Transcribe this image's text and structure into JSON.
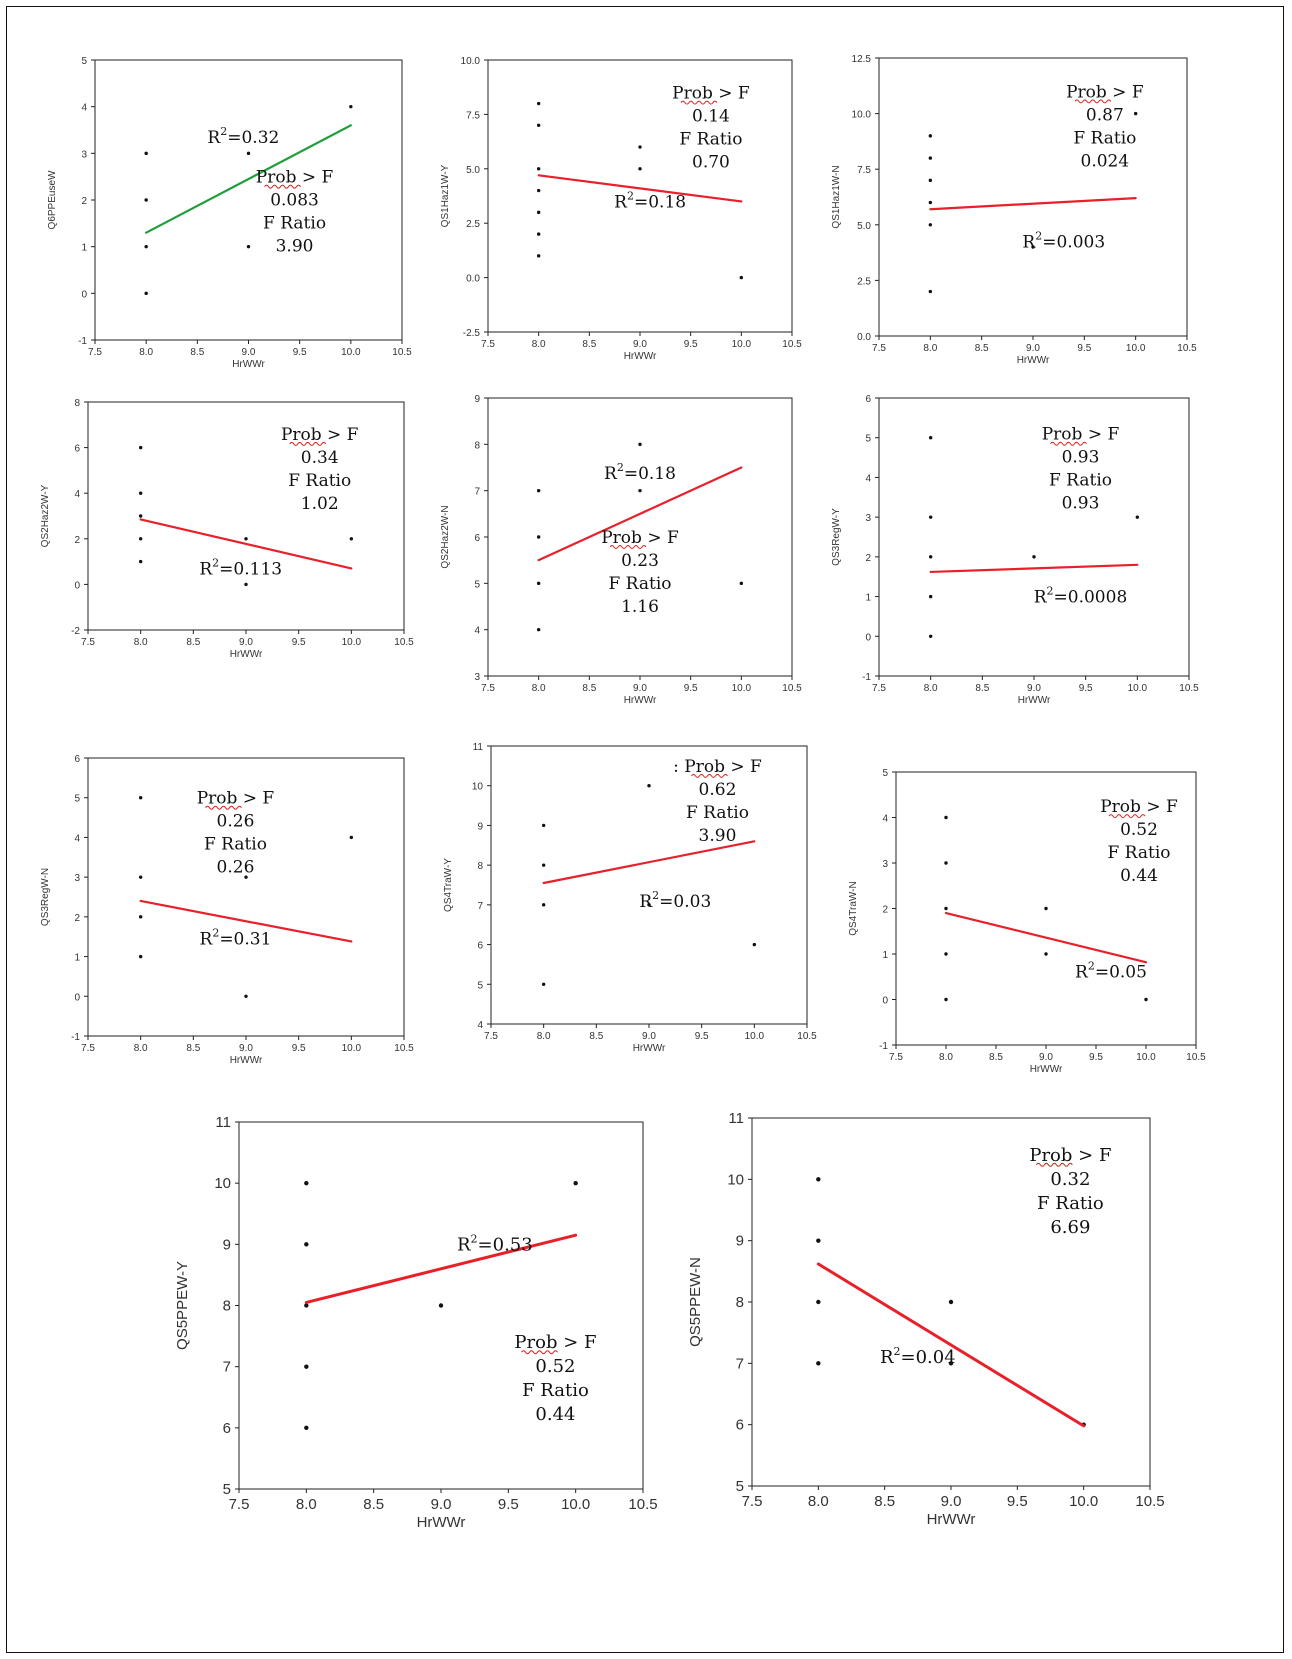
{
  "colors": {
    "fit_red": "#e8202a",
    "fit_green": "#1f9e3a",
    "points": "#111111",
    "frame": "#111111"
  },
  "chart_data": [
    {
      "type": "scatter",
      "xlabel": "HrWWr",
      "ylabel": "Q6PPEuseW",
      "xlim": [
        7.5,
        10.5
      ],
      "ylim": [
        -1,
        5
      ],
      "xticks": [
        "7.5",
        "8.0",
        "8.5",
        "9.0",
        "9.5",
        "10.0",
        "10.5"
      ],
      "yticks": [
        "-1",
        "0",
        "1",
        "2",
        "3",
        "4",
        "5"
      ],
      "points": [
        [
          8,
          3
        ],
        [
          8,
          2
        ],
        [
          8,
          1
        ],
        [
          8,
          0
        ],
        [
          9,
          3
        ],
        [
          9,
          1
        ],
        [
          10,
          4
        ]
      ],
      "fit": {
        "color": "#1f9e3a",
        "x": [
          8,
          10
        ],
        "y": [
          1.3,
          3.6
        ]
      },
      "annotations": {
        "r2_prefix": "R",
        "r2_sup": "2",
        "r2_value": "=0.32",
        "prob_label": "Prob > F",
        "prob_value": "0.083",
        "f_label": "F Ratio",
        "f_value": "3.90"
      }
    },
    {
      "type": "scatter",
      "xlabel": "HrWWr",
      "ylabel": "QS1Haz1W-Y",
      "xlim": [
        7.5,
        10.5
      ],
      "ylim": [
        -2.5,
        10
      ],
      "xticks": [
        "7.5",
        "8.0",
        "8.5",
        "9.0",
        "9.5",
        "10.0",
        "10.5"
      ],
      "yticks": [
        "-2.5",
        "0.0",
        "2.5",
        "5.0",
        "7.5",
        "10.0"
      ],
      "points": [
        [
          8,
          8
        ],
        [
          8,
          7
        ],
        [
          8,
          5
        ],
        [
          8,
          4
        ],
        [
          8,
          3
        ],
        [
          8,
          2
        ],
        [
          8,
          1
        ],
        [
          9,
          6
        ],
        [
          9,
          5
        ],
        [
          10,
          0
        ]
      ],
      "fit": {
        "color": "#e8202a",
        "x": [
          8,
          10
        ],
        "y": [
          4.7,
          3.5
        ]
      },
      "annotations": {
        "r2_prefix": "R",
        "r2_sup": "2",
        "r2_value": "=0.18",
        "prob_label": "Prob > F",
        "prob_value": "0.14",
        "f_label": "F Ratio",
        "f_value": "0.70"
      }
    },
    {
      "type": "scatter",
      "xlabel": "HrWWr",
      "ylabel": "QS1Haz1W-N",
      "xlim": [
        7.5,
        10.5
      ],
      "ylim": [
        0,
        12.5
      ],
      "xticks": [
        "7.5",
        "8.0",
        "8.5",
        "9.0",
        "9.5",
        "10.0",
        "10.5"
      ],
      "yticks": [
        "0.0",
        "2.5",
        "5.0",
        "7.5",
        "10.0",
        "12.5"
      ],
      "points": [
        [
          8,
          9
        ],
        [
          8,
          8
        ],
        [
          8,
          7
        ],
        [
          8,
          6
        ],
        [
          8,
          5
        ],
        [
          8,
          2
        ],
        [
          9,
          4
        ],
        [
          10,
          10
        ]
      ],
      "fit": {
        "color": "#e8202a",
        "x": [
          8,
          10
        ],
        "y": [
          5.7,
          6.2
        ]
      },
      "annotations": {
        "r2_prefix": "R",
        "r2_sup": "2",
        "r2_value": "=0.003",
        "prob_label": "Prob > F",
        "prob_value": "0.87",
        "f_label": "F Ratio",
        "f_value": "0.024"
      }
    },
    {
      "type": "scatter",
      "xlabel": "HrWWr",
      "ylabel": "QS2Haz2W-Y",
      "xlim": [
        7.5,
        10.5
      ],
      "ylim": [
        -2,
        8
      ],
      "xticks": [
        "7.5",
        "8.0",
        "8.5",
        "9.0",
        "9.5",
        "10.0",
        "10.5"
      ],
      "yticks": [
        "-2",
        "0",
        "2",
        "4",
        "6",
        "8"
      ],
      "points": [
        [
          8,
          6
        ],
        [
          8,
          4
        ],
        [
          8,
          3
        ],
        [
          8,
          2
        ],
        [
          8,
          1
        ],
        [
          9,
          2
        ],
        [
          9,
          0
        ],
        [
          10,
          2
        ]
      ],
      "fit": {
        "color": "#e8202a",
        "x": [
          8,
          10
        ],
        "y": [
          2.85,
          0.7
        ]
      },
      "annotations": {
        "r2_prefix": "R",
        "r2_sup": "2",
        "r2_value": "=0.113",
        "prob_label": "Prob > F",
        "prob_value": "0.34",
        "f_label": "F Ratio",
        "f_value": "1.02"
      }
    },
    {
      "type": "scatter",
      "xlabel": "HrWWr",
      "ylabel": "QS2Haz2W-N",
      "xlim": [
        7.5,
        10.5
      ],
      "ylim": [
        3,
        9
      ],
      "xticks": [
        "7.5",
        "8.0",
        "8.5",
        "9.0",
        "9.5",
        "10.0",
        "10.5"
      ],
      "yticks": [
        "3",
        "4",
        "5",
        "6",
        "7",
        "8",
        "9"
      ],
      "points": [
        [
          8,
          7
        ],
        [
          8,
          6
        ],
        [
          8,
          5
        ],
        [
          8,
          4
        ],
        [
          9,
          8
        ],
        [
          9,
          7
        ],
        [
          10,
          5
        ]
      ],
      "fit": {
        "color": "#e8202a",
        "x": [
          8,
          10
        ],
        "y": [
          5.5,
          7.5
        ]
      },
      "annotations": {
        "r2_prefix": "R",
        "r2_sup": "2",
        "r2_value": "=0.18",
        "prob_label": "Prob > F",
        "prob_value": "0.23",
        "f_label": "F Ratio",
        "f_value": "1.16"
      }
    },
    {
      "type": "scatter",
      "xlabel": "HrWWr",
      "ylabel": "QS3RegW-Y",
      "xlim": [
        7.5,
        10.5
      ],
      "ylim": [
        -1,
        6
      ],
      "xticks": [
        "7.5",
        "8.0",
        "8.5",
        "9.0",
        "9.5",
        "10.0",
        "10.5"
      ],
      "yticks": [
        "-1",
        "0",
        "1",
        "2",
        "3",
        "4",
        "5",
        "6"
      ],
      "points": [
        [
          8,
          5
        ],
        [
          8,
          3
        ],
        [
          8,
          2
        ],
        [
          8,
          1
        ],
        [
          8,
          0
        ],
        [
          9,
          2
        ],
        [
          10,
          3
        ]
      ],
      "fit": {
        "color": "#e8202a",
        "x": [
          8,
          10
        ],
        "y": [
          1.62,
          1.8
        ]
      },
      "annotations": {
        "r2_prefix": "R",
        "r2_sup": "2",
        "r2_value": "=0.0008",
        "prob_label": "Prob > F",
        "prob_value": "0.93",
        "f_label": "F Ratio",
        "f_value": "0.93"
      }
    },
    {
      "type": "scatter",
      "xlabel": "HrWWr",
      "ylabel": "QS3RegW-N",
      "xlim": [
        7.5,
        10.5
      ],
      "ylim": [
        -1,
        6
      ],
      "xticks": [
        "7.5",
        "8.0",
        "8.5",
        "9.0",
        "9.5",
        "10.0",
        "10.5"
      ],
      "yticks": [
        "-1",
        "0",
        "1",
        "2",
        "3",
        "4",
        "5",
        "6"
      ],
      "points": [
        [
          8,
          5
        ],
        [
          8,
          3
        ],
        [
          8,
          2
        ],
        [
          8,
          1
        ],
        [
          9,
          3
        ],
        [
          9,
          0
        ],
        [
          10,
          4
        ]
      ],
      "fit": {
        "color": "#e8202a",
        "x": [
          8,
          10
        ],
        "y": [
          2.4,
          1.38
        ]
      },
      "annotations": {
        "r2_prefix": "R",
        "r2_sup": "2",
        "r2_value": "=0.31",
        "prob_label": "Prob > F",
        "prob_value": "0.26",
        "f_label": "F Ratio",
        "f_value": "0.26"
      }
    },
    {
      "type": "scatter",
      "xlabel": "HrWWr",
      "ylabel": "QS4TraW-Y",
      "xlim": [
        7.5,
        10.5
      ],
      "ylim": [
        4,
        11
      ],
      "xticks": [
        "7.5",
        "8.0",
        "8.5",
        "9.0",
        "9.5",
        "10.0",
        "10.5"
      ],
      "yticks": [
        "4",
        "5",
        "6",
        "7",
        "8",
        "9",
        "10",
        "11"
      ],
      "points": [
        [
          8,
          9
        ],
        [
          8,
          8
        ],
        [
          8,
          7
        ],
        [
          8,
          5
        ],
        [
          9,
          10
        ],
        [
          9,
          7
        ],
        [
          10,
          6
        ]
      ],
      "fit": {
        "color": "#e8202a",
        "x": [
          8,
          10
        ],
        "y": [
          7.55,
          8.6
        ]
      },
      "annotations": {
        "r2_prefix": "R",
        "r2_sup": "2",
        "r2_value": "=0.03",
        "prob_label": "Prob > F",
        "prob_prefix": ":",
        "prob_value": "0.62",
        "f_label": "F Ratio",
        "f_value": "3.90"
      }
    },
    {
      "type": "scatter",
      "xlabel": "HrWWr",
      "ylabel": "QS4TraW-N",
      "xlim": [
        7.5,
        10.5
      ],
      "ylim": [
        -1,
        5
      ],
      "xticks": [
        "7.5",
        "8.0",
        "8.5",
        "9.0",
        "9.5",
        "10.0",
        "10.5"
      ],
      "yticks": [
        "-1",
        "0",
        "1",
        "2",
        "3",
        "4",
        "5"
      ],
      "points": [
        [
          8,
          4
        ],
        [
          8,
          3
        ],
        [
          8,
          2
        ],
        [
          8,
          1
        ],
        [
          8,
          0
        ],
        [
          9,
          2
        ],
        [
          9,
          1
        ],
        [
          10,
          0
        ]
      ],
      "fit": {
        "color": "#e8202a",
        "x": [
          8,
          10
        ],
        "y": [
          1.9,
          0.82
        ]
      },
      "annotations": {
        "r2_prefix": "R",
        "r2_sup": "2",
        "r2_value": "=0.05",
        "prob_label": "Prob > F",
        "prob_value": "0.52",
        "f_label": "F Ratio",
        "f_value": "0.44"
      }
    },
    {
      "type": "scatter",
      "xlabel": "HrWWr",
      "ylabel": "QS5PPEW-Y",
      "xlim": [
        7.5,
        10.5
      ],
      "ylim": [
        5,
        11
      ],
      "xticks": [
        "7.5",
        "8.0",
        "8.5",
        "9.0",
        "9.5",
        "10.0",
        "10.5"
      ],
      "yticks": [
        "5",
        "6",
        "7",
        "8",
        "9",
        "10",
        "11"
      ],
      "points": [
        [
          8,
          10
        ],
        [
          8,
          9
        ],
        [
          8,
          8
        ],
        [
          8,
          7
        ],
        [
          8,
          6
        ],
        [
          9,
          8
        ],
        [
          10,
          10
        ]
      ],
      "fit": {
        "color": "#e8202a",
        "x": [
          8,
          10
        ],
        "y": [
          8.05,
          9.15
        ]
      },
      "annotations": {
        "r2_prefix": "R",
        "r2_sup": "2",
        "r2_value": "=0.53",
        "prob_label": "Prob > F",
        "prob_value": "0.52",
        "f_label": "F Ratio",
        "f_value": "0.44"
      }
    },
    {
      "type": "scatter",
      "xlabel": "HrWWr",
      "ylabel": "QS5PPEW-N",
      "xlim": [
        7.5,
        10.5
      ],
      "ylim": [
        5,
        11
      ],
      "xticks": [
        "7.5",
        "8.0",
        "8.5",
        "9.0",
        "9.5",
        "10.0",
        "10.5"
      ],
      "yticks": [
        "5",
        "6",
        "7",
        "8",
        "9",
        "10",
        "11"
      ],
      "points": [
        [
          8,
          10
        ],
        [
          8,
          9
        ],
        [
          8,
          8
        ],
        [
          8,
          7
        ],
        [
          9,
          8
        ],
        [
          9,
          7
        ],
        [
          10,
          6
        ]
      ],
      "fit": {
        "color": "#e8202a",
        "x": [
          8,
          10
        ],
        "y": [
          8.62,
          5.98
        ]
      },
      "annotations": {
        "r2_prefix": "R",
        "r2_sup": "2",
        "r2_value": "=0.04",
        "prob_label": "Prob > F",
        "prob_value": "0.32",
        "f_label": "F Ratio",
        "f_value": "6.69"
      }
    }
  ]
}
